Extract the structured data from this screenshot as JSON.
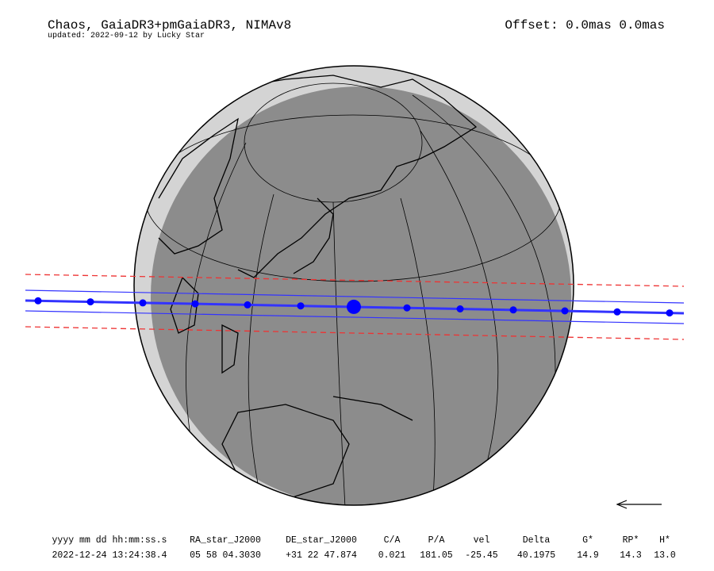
{
  "header": {
    "title": "Chaos, GaiaDR3+pmGaiaDR3, NIMAv8",
    "updated": "updated: 2022-09-12 by Lucky Star",
    "offset": "Offset: 0.0mas 0.0mas"
  },
  "table": {
    "headers": [
      "yyyy mm dd hh:mm:ss.s",
      "RA_star_J2000",
      "DE_star_J2000",
      "C/A",
      "P/A",
      "vel",
      "Delta",
      "G*",
      "RP*",
      "H*"
    ],
    "rows": [
      [
        "2022-12-24 13:24:38.4",
        "05 58 04.3030",
        "+31 22 47.874",
        "0.021",
        "181.05",
        "-25.45",
        "40.1975",
        "14.9",
        "14.3",
        "13.0"
      ]
    ]
  }
}
